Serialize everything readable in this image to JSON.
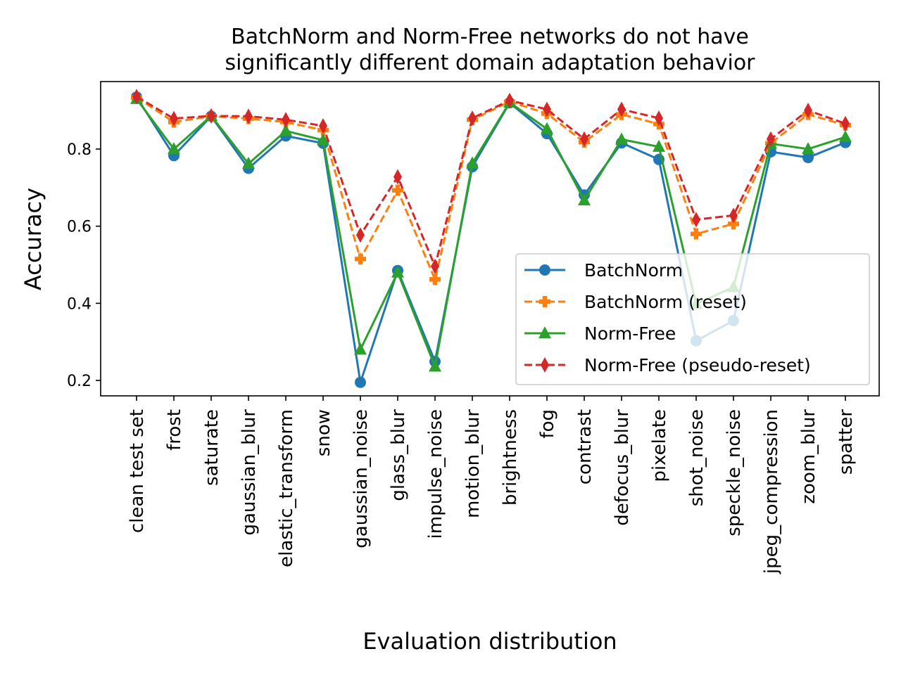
{
  "chart_data": {
    "type": "line",
    "title_lines": [
      "BatchNorm and Norm-Free networks do not have",
      "significantly different domain adaptation behavior"
    ],
    "xlabel": "Evaluation distribution",
    "ylabel": "Accuracy",
    "ylim": [
      0.16,
      0.975
    ],
    "yticks": [
      0.2,
      0.4,
      0.6,
      0.8
    ],
    "ytick_labels": [
      "0.2",
      "0.4",
      "0.6",
      "0.8"
    ],
    "grid": false,
    "legend_position": "lower-right",
    "categories": [
      "clean test set",
      "frost",
      "saturate",
      "gaussian_blur",
      "elastic_transform",
      "snow",
      "gaussian_noise",
      "glass_blur",
      "impulse_noise",
      "motion_blur",
      "brightness",
      "fog",
      "contrast",
      "defocus_blur",
      "pixelate",
      "shot_noise",
      "speckle_noise",
      "jpeg_compression",
      "zoom_blur",
      "spatter"
    ],
    "series": [
      {
        "name": "BatchNorm",
        "color": "#1f77b4",
        "linestyle": "solid",
        "marker": "circle",
        "values": [
          0.935,
          0.783,
          0.885,
          0.75,
          0.834,
          0.815,
          0.195,
          0.485,
          0.249,
          0.754,
          0.92,
          0.84,
          0.681,
          0.816,
          0.773,
          0.303,
          0.355,
          0.793,
          0.778,
          0.817
        ]
      },
      {
        "name": "BatchNorm (reset)",
        "color": "#ff7f0e",
        "linestyle": "dashed",
        "marker": "plus-filled",
        "values": [
          0.934,
          0.87,
          0.885,
          0.879,
          0.87,
          0.849,
          0.515,
          0.693,
          0.462,
          0.876,
          0.923,
          0.892,
          0.818,
          0.89,
          0.865,
          0.58,
          0.606,
          0.815,
          0.89,
          0.862
        ]
      },
      {
        "name": "Norm-Free",
        "color": "#2ca02c",
        "linestyle": "solid",
        "marker": "triangle",
        "values": [
          0.93,
          0.8,
          0.886,
          0.762,
          0.847,
          0.823,
          0.28,
          0.48,
          0.236,
          0.763,
          0.921,
          0.852,
          0.667,
          0.825,
          0.806,
          0.398,
          0.442,
          0.814,
          0.8,
          0.831
        ]
      },
      {
        "name": "Norm-Free (pseudo-reset)",
        "color": "#d62728",
        "linestyle": "dashed",
        "marker": "thin-diamond",
        "values": [
          0.936,
          0.879,
          0.886,
          0.885,
          0.876,
          0.86,
          0.577,
          0.728,
          0.496,
          0.88,
          0.926,
          0.903,
          0.826,
          0.903,
          0.88,
          0.617,
          0.628,
          0.826,
          0.9,
          0.866
        ]
      }
    ]
  }
}
